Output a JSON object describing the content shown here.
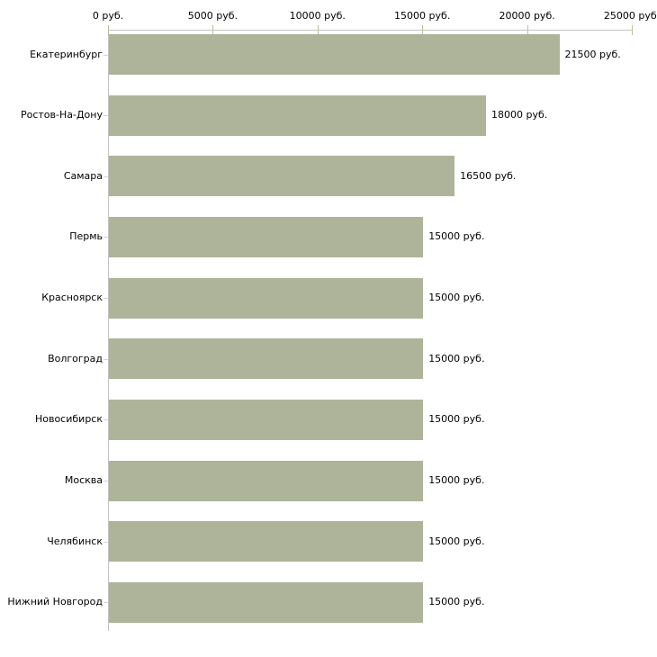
{
  "chart_data": {
    "type": "bar",
    "orientation": "horizontal",
    "title": "",
    "categories": [
      "Екатеринбург",
      "Ростов-На-Дону",
      "Самара",
      "Пермь",
      "Красноярск",
      "Волгоград",
      "Новосибирск",
      "Москва",
      "Челябинск",
      "Нижний Новгород"
    ],
    "values": [
      21500,
      18000,
      16500,
      15000,
      15000,
      15000,
      15000,
      15000,
      15000,
      15000
    ],
    "value_labels": [
      "21500 руб.",
      "18000 руб.",
      "16500 руб.",
      "15000 руб.",
      "15000 руб.",
      "15000 руб.",
      "15000 руб.",
      "15000 руб.",
      "15000 руб.",
      "15000 руб."
    ],
    "x_axis": {
      "position": "top",
      "range": [
        0,
        25000
      ],
      "tick_values": [
        0,
        5000,
        10000,
        15000,
        20000,
        25000
      ],
      "tick_labels": [
        "0 руб.",
        "5000 руб.",
        "10000 руб.",
        "15000 руб.",
        "20000 руб.",
        "25000 руб."
      ]
    },
    "grid": false,
    "legend": false,
    "colors": {
      "bar": "#adb499",
      "axis_line": "#c3c3c3",
      "axis_tick": "#bcbf9e",
      "category_tick": "#d8d8c4",
      "text": "#000000",
      "background": "#ffffff"
    }
  }
}
